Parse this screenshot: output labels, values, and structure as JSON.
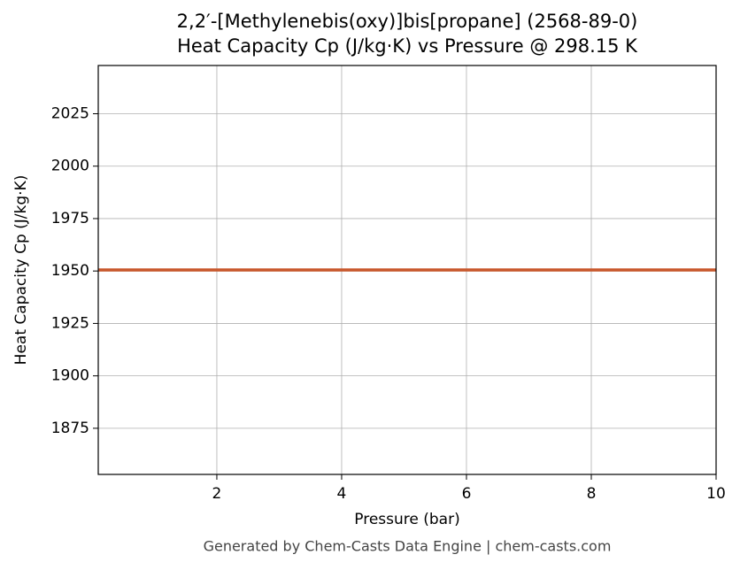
{
  "chart_data": {
    "type": "line",
    "title": "2,2′-[Methylenebis(oxy)]bis[propane] (2568-89-0)",
    "subtitle": "Heat Capacity Cp (J/kg·K) vs Pressure @ 298.15 K",
    "x_label": "Pressure (bar)",
    "y_label": "Heat Capacity Cp (J/kg·K)",
    "footer": "Generated by Chem-Casts Data Engine | chem-casts.com",
    "x": [
      0.1,
      10
    ],
    "series": [
      {
        "name": "Cp",
        "color": "#c8572b",
        "values": [
          1950.5,
          1950.5
        ]
      }
    ],
    "xlim": [
      0.1,
      10
    ],
    "xticks": [
      2,
      4,
      6,
      8,
      10
    ],
    "ylim": [
      1853,
      2048
    ],
    "yticks": [
      1875,
      1900,
      1925,
      1950,
      1975,
      2000,
      2025
    ],
    "grid": true
  }
}
